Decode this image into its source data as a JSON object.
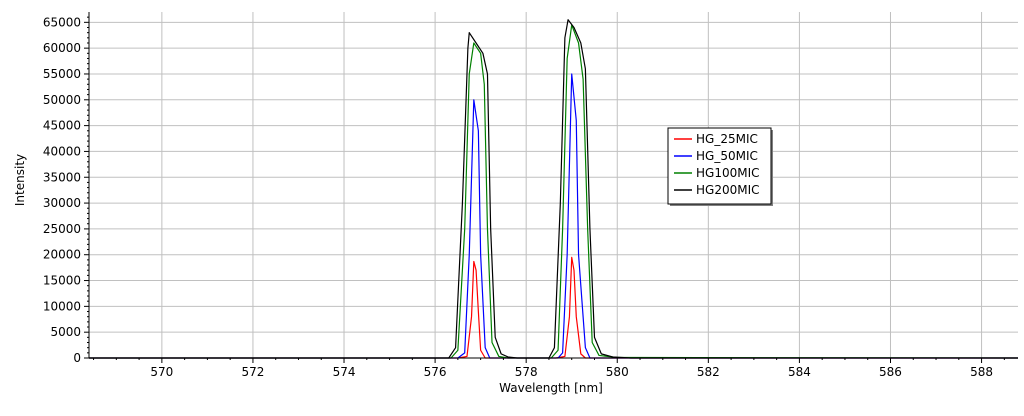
{
  "chart_data": {
    "type": "line",
    "title": "",
    "xlabel": "Wavelength [nm]",
    "ylabel": "Intensity",
    "xlim": [
      568.4,
      588.8
    ],
    "ylim": [
      0,
      67000
    ],
    "x_ticks": [
      570,
      572,
      574,
      576,
      578,
      580,
      582,
      584,
      586,
      588
    ],
    "y_ticks": [
      0,
      5000,
      10000,
      15000,
      20000,
      25000,
      30000,
      35000,
      40000,
      45000,
      50000,
      55000,
      60000,
      65000
    ],
    "grid": true,
    "legend_position": "center-right",
    "series": [
      {
        "name": "HG_25MIC",
        "color": "#ff0000",
        "points": [
          [
            568.4,
            0
          ],
          [
            576.5,
            0
          ],
          [
            576.7,
            300
          ],
          [
            576.8,
            8000
          ],
          [
            576.85,
            18700
          ],
          [
            576.9,
            17000
          ],
          [
            576.95,
            9000
          ],
          [
            577.0,
            1500
          ],
          [
            577.1,
            0
          ],
          [
            578.65,
            0
          ],
          [
            578.85,
            300
          ],
          [
            578.95,
            8000
          ],
          [
            579.0,
            19500
          ],
          [
            579.05,
            17000
          ],
          [
            579.1,
            8000
          ],
          [
            579.2,
            800
          ],
          [
            579.3,
            0
          ],
          [
            588.8,
            0
          ]
        ]
      },
      {
        "name": "HG_50MIC",
        "color": "#0000ff",
        "points": [
          [
            568.4,
            0
          ],
          [
            576.5,
            0
          ],
          [
            576.65,
            1000
          ],
          [
            576.75,
            20000
          ],
          [
            576.85,
            50000
          ],
          [
            576.95,
            44000
          ],
          [
            577.0,
            20000
          ],
          [
            577.1,
            2000
          ],
          [
            577.2,
            0
          ],
          [
            578.7,
            0
          ],
          [
            578.8,
            1000
          ],
          [
            578.9,
            20000
          ],
          [
            579.0,
            55000
          ],
          [
            579.1,
            46000
          ],
          [
            579.15,
            20000
          ],
          [
            579.3,
            2000
          ],
          [
            579.4,
            0
          ],
          [
            588.8,
            0
          ]
        ]
      },
      {
        "name": "HG100MIC",
        "color": "#008000",
        "points": [
          [
            568.4,
            0
          ],
          [
            576.35,
            0
          ],
          [
            576.5,
            1500
          ],
          [
            576.65,
            25000
          ],
          [
            576.75,
            55000
          ],
          [
            576.85,
            61000
          ],
          [
            577.0,
            59000
          ],
          [
            577.08,
            53000
          ],
          [
            577.15,
            25000
          ],
          [
            577.25,
            3000
          ],
          [
            577.4,
            300
          ],
          [
            577.6,
            0
          ],
          [
            578.55,
            0
          ],
          [
            578.7,
            1500
          ],
          [
            578.8,
            25000
          ],
          [
            578.9,
            58000
          ],
          [
            579.0,
            64500
          ],
          [
            579.15,
            61000
          ],
          [
            579.25,
            54000
          ],
          [
            579.35,
            25000
          ],
          [
            579.45,
            3000
          ],
          [
            579.6,
            500
          ],
          [
            580.0,
            100
          ],
          [
            588.8,
            0
          ]
        ]
      },
      {
        "name": "HG200MIC",
        "color": "#000000",
        "points": [
          [
            568.4,
            0
          ],
          [
            576.3,
            0
          ],
          [
            576.45,
            2000
          ],
          [
            576.6,
            30000
          ],
          [
            576.72,
            60000
          ],
          [
            576.75,
            63000
          ],
          [
            576.9,
            61000
          ],
          [
            577.05,
            59000
          ],
          [
            577.15,
            55000
          ],
          [
            577.22,
            25000
          ],
          [
            577.32,
            4000
          ],
          [
            577.45,
            800
          ],
          [
            577.6,
            200
          ],
          [
            577.8,
            0
          ],
          [
            578.5,
            0
          ],
          [
            578.62,
            2000
          ],
          [
            578.75,
            30000
          ],
          [
            578.85,
            62000
          ],
          [
            578.92,
            65500
          ],
          [
            579.05,
            64000
          ],
          [
            579.2,
            61000
          ],
          [
            579.3,
            56000
          ],
          [
            579.4,
            25000
          ],
          [
            579.5,
            4000
          ],
          [
            579.65,
            800
          ],
          [
            579.9,
            200
          ],
          [
            580.3,
            0
          ],
          [
            588.8,
            0
          ]
        ]
      }
    ]
  },
  "style": {
    "background": "#ffffff",
    "grid_color": "#c0c0c0",
    "axis_color": "#000000"
  }
}
